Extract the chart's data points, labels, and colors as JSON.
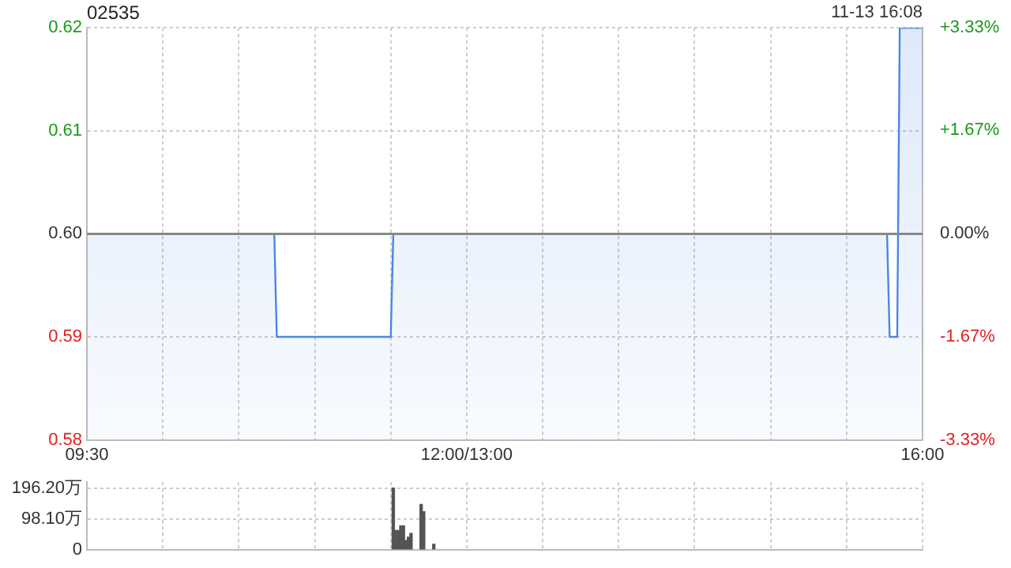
{
  "chart_data": [
    {
      "type": "area",
      "title": "02535",
      "annotations": [
        "11-13 16:08"
      ],
      "categories": [
        "09:30",
        null,
        null,
        null,
        null,
        null,
        null,
        null,
        null,
        null,
        null,
        null,
        null,
        null,
        null,
        null,
        null,
        null,
        null,
        null,
        null,
        null,
        null,
        null,
        null,
        null,
        null,
        null,
        null,
        null,
        null,
        null,
        null,
        null,
        null,
        null,
        null,
        null,
        null,
        null,
        null,
        null,
        null,
        null,
        null,
        null,
        null,
        null,
        null,
        null,
        null,
        null,
        null,
        null,
        null,
        null,
        null,
        null,
        null,
        null,
        null,
        null,
        null,
        null,
        null,
        null,
        null,
        null,
        null,
        null,
        null,
        null,
        null,
        null,
        null,
        null,
        null,
        null,
        null,
        null,
        null,
        null,
        null,
        null,
        null,
        null,
        null,
        null,
        null,
        null,
        null,
        null,
        null,
        null,
        null,
        null,
        null,
        null,
        null,
        null,
        null,
        null,
        null,
        null,
        null,
        null,
        null,
        null,
        null,
        null,
        null,
        null,
        null,
        null,
        null,
        null,
        null,
        null,
        null,
        null,
        null,
        null,
        null,
        null,
        null,
        null,
        null,
        null,
        null,
        null,
        null,
        null,
        null,
        null,
        null,
        null,
        null,
        null,
        null,
        null,
        null,
        null,
        null,
        null,
        null,
        null,
        null,
        null,
        null,
        null,
        "12:00/13:00",
        null,
        null,
        null,
        null,
        null,
        null,
        null,
        null,
        null,
        null,
        null,
        null,
        null,
        null,
        null,
        null,
        null,
        null,
        null,
        null,
        null,
        null,
        null,
        null,
        null,
        null,
        null,
        null,
        null,
        null,
        null,
        null,
        null,
        null,
        null,
        null,
        null,
        null,
        null,
        null,
        null,
        null,
        null,
        null,
        null,
        null,
        null,
        null,
        null,
        null,
        null,
        null,
        null,
        null,
        null,
        null,
        null,
        null,
        null,
        null,
        null,
        null,
        null,
        null,
        null,
        null,
        null,
        null,
        null,
        null,
        null,
        null,
        null,
        null,
        null,
        null,
        null,
        null,
        null,
        null,
        null,
        null,
        null,
        null,
        null,
        null,
        null,
        null,
        null,
        null,
        null,
        null,
        null,
        null,
        null,
        null,
        null,
        null,
        null,
        null,
        null,
        null,
        null,
        null,
        null,
        null,
        null,
        null,
        null,
        null,
        null,
        null,
        null,
        null,
        null,
        null,
        null,
        null,
        null,
        null,
        null,
        null,
        null,
        null,
        null,
        null,
        null,
        null,
        null,
        null,
        null,
        null,
        null,
        null,
        null,
        null,
        null,
        null,
        null,
        null,
        null,
        null,
        null,
        null,
        null,
        null,
        null,
        null,
        null,
        null,
        null,
        null,
        null,
        null,
        null,
        null,
        null,
        null,
        null,
        null,
        null,
        null,
        null,
        null,
        null,
        null,
        null,
        null,
        null,
        null,
        null,
        null,
        null,
        null,
        null,
        null,
        null,
        null,
        null,
        "16:00"
      ],
      "values": [
        0.6,
        0.6,
        0.6,
        0.6,
        0.6,
        0.6,
        0.6,
        0.6,
        0.6,
        0.6,
        0.6,
        0.6,
        0.6,
        0.6,
        0.6,
        0.6,
        0.6,
        0.6,
        0.6,
        0.6,
        0.6,
        0.6,
        0.6,
        0.6,
        0.6,
        0.6,
        0.6,
        0.6,
        0.6,
        0.6,
        0.6,
        0.6,
        0.6,
        0.6,
        0.6,
        0.6,
        0.6,
        0.6,
        0.6,
        0.6,
        0.6,
        0.6,
        0.6,
        0.6,
        0.6,
        0.6,
        0.6,
        0.6,
        0.6,
        0.6,
        0.6,
        0.6,
        0.6,
        0.6,
        0.6,
        0.6,
        0.6,
        0.6,
        0.6,
        0.6,
        0.6,
        0.6,
        0.6,
        0.6,
        0.6,
        0.6,
        0.6,
        0.6,
        0.6,
        0.6,
        0.6,
        0.6,
        0.6,
        0.6,
        0.6,
        0.59,
        0.59,
        0.59,
        0.59,
        0.59,
        0.59,
        0.59,
        0.59,
        0.59,
        0.59,
        0.59,
        0.59,
        0.59,
        0.59,
        0.59,
        0.59,
        0.59,
        0.59,
        0.59,
        0.59,
        0.59,
        0.59,
        0.59,
        0.59,
        0.59,
        0.59,
        0.59,
        0.59,
        0.59,
        0.59,
        0.59,
        0.59,
        0.59,
        0.59,
        0.59,
        0.59,
        0.59,
        0.59,
        0.59,
        0.59,
        0.59,
        0.59,
        0.59,
        0.59,
        0.59,
        0.59,
        0.6,
        0.6,
        0.6,
        0.6,
        0.6,
        0.6,
        0.6,
        0.6,
        0.6,
        0.6,
        0.6,
        0.6,
        0.6,
        0.6,
        0.6,
        0.6,
        0.6,
        0.6,
        0.6,
        0.6,
        0.6,
        0.6,
        0.6,
        0.6,
        0.6,
        0.6,
        0.6,
        0.6,
        0.6,
        0.6,
        0.6,
        0.6,
        0.6,
        0.6,
        0.6,
        0.6,
        0.6,
        0.6,
        0.6,
        0.6,
        0.6,
        0.6,
        0.6,
        0.6,
        0.6,
        0.6,
        0.6,
        0.6,
        0.6,
        0.6,
        0.6,
        0.6,
        0.6,
        0.6,
        0.6,
        0.6,
        0.6,
        0.6,
        0.6,
        0.6,
        0.6,
        0.6,
        0.6,
        0.6,
        0.6,
        0.6,
        0.6,
        0.6,
        0.6,
        0.6,
        0.6,
        0.6,
        0.6,
        0.6,
        0.6,
        0.6,
        0.6,
        0.6,
        0.6,
        0.6,
        0.6,
        0.6,
        0.6,
        0.6,
        0.6,
        0.6,
        0.6,
        0.6,
        0.6,
        0.6,
        0.6,
        0.6,
        0.6,
        0.6,
        0.6,
        0.6,
        0.6,
        0.6,
        0.6,
        0.6,
        0.6,
        0.6,
        0.6,
        0.6,
        0.6,
        0.6,
        0.6,
        0.6,
        0.6,
        0.6,
        0.6,
        0.6,
        0.6,
        0.6,
        0.6,
        0.6,
        0.6,
        0.6,
        0.6,
        0.6,
        0.6,
        0.6,
        0.6,
        0.6,
        0.6,
        0.6,
        0.6,
        0.6,
        0.6,
        0.6,
        0.6,
        0.6,
        0.6,
        0.6,
        0.6,
        0.6,
        0.6,
        0.6,
        0.6,
        0.6,
        0.6,
        0.6,
        0.6,
        0.6,
        0.6,
        0.6,
        0.6,
        0.6,
        0.6,
        0.6,
        0.6,
        0.6,
        0.6,
        0.6,
        0.6,
        0.6,
        0.6,
        0.6,
        0.6,
        0.6,
        0.6,
        0.6,
        0.6,
        0.6,
        0.6,
        0.6,
        0.6,
        0.6,
        0.6,
        0.6,
        0.6,
        0.6,
        0.6,
        0.6,
        0.6,
        0.6,
        0.6,
        0.6,
        0.6,
        0.6,
        0.6,
        0.6,
        0.6,
        0.6,
        0.6,
        0.6,
        0.6,
        0.6,
        0.6,
        0.6,
        0.6,
        0.6,
        0.6,
        0.6,
        0.6,
        0.6,
        0.59,
        0.59,
        0.59,
        0.59,
        0.62,
        0.62,
        0.62,
        0.62,
        0.62,
        0.62,
        0.62,
        0.62,
        0.62,
        0.62
      ],
      "color": "#4a86e8",
      "ylim": [
        0.58,
        0.62
      ],
      "yticks": [
        0.58,
        0.59,
        {
          "value": 0.6,
          "label": "0.60"
        },
        0.61,
        0.62
      ],
      "y2lim": [
        -3.33,
        3.33
      ],
      "y2ticks": [
        {
          "value": -3.33,
          "label": "-3.33%"
        },
        {
          "value": -1.67,
          "label": "-1.67%"
        },
        {
          "value": 0,
          "label": "0.00%"
        },
        {
          "value": 1.67,
          "label": "+1.67%"
        },
        {
          "value": 3.33,
          "label": "+3.33%"
        }
      ],
      "ref_lines": [
        {
          "axis": "y",
          "value": 0.6,
          "color": "#888888"
        }
      ],
      "grid": true
    },
    {
      "type": "bar",
      "categories": [
        null,
        null,
        null,
        null,
        null,
        null,
        null,
        null,
        null,
        null,
        null,
        null,
        null,
        null,
        null,
        null,
        null,
        null,
        null,
        null,
        null,
        null,
        null,
        null,
        null,
        null,
        null,
        null,
        null,
        null,
        null,
        null,
        null,
        null,
        null,
        null,
        null,
        null,
        null,
        null,
        null,
        null,
        null,
        null,
        null,
        null,
        null,
        null,
        null,
        null,
        null,
        null,
        null,
        null,
        null,
        null,
        null,
        null,
        null,
        null,
        null,
        null,
        null,
        null,
        null,
        null,
        null,
        null,
        null,
        null,
        null,
        null,
        null,
        null,
        null,
        null,
        null,
        null,
        null,
        null,
        null,
        null,
        null,
        null,
        null,
        null,
        null,
        null,
        null,
        null,
        null,
        null,
        null,
        null,
        null,
        null,
        null,
        null,
        null,
        null,
        null,
        null,
        null,
        null,
        null,
        null,
        null,
        null,
        null,
        null,
        null,
        null,
        null,
        null,
        null,
        null,
        null,
        null,
        null,
        null,
        null,
        null,
        null,
        null,
        null,
        null,
        null,
        null,
        null,
        null,
        null,
        null,
        null,
        null,
        null,
        null,
        null,
        null,
        null,
        null,
        null,
        null,
        null,
        null,
        null,
        null,
        null,
        null,
        null,
        null,
        null,
        null,
        null,
        null,
        null,
        null,
        null,
        null,
        null,
        null,
        null,
        null,
        null,
        null,
        null,
        null,
        null,
        null,
        null,
        null,
        null,
        null,
        null,
        null,
        null,
        null,
        null,
        null,
        null,
        null,
        null,
        null,
        null,
        null,
        null,
        null,
        null,
        null,
        null,
        null,
        null,
        null,
        null,
        null,
        null,
        null,
        null,
        null,
        null,
        null,
        null,
        null,
        null,
        null,
        null,
        null,
        null,
        null,
        null,
        null,
        null,
        null,
        null,
        null,
        null,
        null,
        null,
        null,
        null,
        null,
        null,
        null,
        null,
        null,
        null,
        null,
        null,
        null,
        null,
        null,
        null,
        null,
        null,
        null,
        null,
        null,
        null,
        null,
        null,
        null,
        null,
        null,
        null,
        null,
        null,
        null,
        null,
        null,
        null,
        null,
        null,
        null,
        null,
        null,
        null,
        null,
        null,
        null,
        null,
        null,
        null,
        null,
        null,
        null,
        null,
        null,
        null,
        null,
        null,
        null,
        null,
        null,
        null,
        null,
        null,
        null,
        null,
        null,
        null,
        null,
        null,
        null,
        null,
        null,
        null,
        null,
        null,
        null,
        null,
        null,
        null,
        null,
        null,
        null,
        null,
        null,
        null,
        null,
        null,
        null,
        null,
        null,
        null,
        null,
        null,
        null,
        null,
        null,
        null,
        null,
        null,
        null,
        null,
        null,
        null,
        null,
        null,
        null,
        null,
        null,
        null,
        null,
        null,
        null,
        null,
        null,
        null,
        null,
        null,
        null,
        null
      ],
      "values": [
        null,
        null,
        null,
        null,
        null,
        null,
        null,
        null,
        null,
        null,
        null,
        null,
        null,
        null,
        null,
        null,
        null,
        null,
        null,
        null,
        null,
        null,
        null,
        null,
        null,
        null,
        null,
        null,
        null,
        null,
        null,
        null,
        null,
        null,
        null,
        null,
        null,
        null,
        null,
        null,
        null,
        null,
        null,
        null,
        null,
        null,
        null,
        null,
        null,
        null,
        null,
        null,
        null,
        null,
        null,
        null,
        null,
        null,
        null,
        null,
        null,
        null,
        null,
        null,
        null,
        null,
        null,
        null,
        null,
        null,
        null,
        null,
        null,
        null,
        null,
        null,
        null,
        null,
        null,
        null,
        null,
        null,
        null,
        null,
        null,
        null,
        null,
        null,
        null,
        null,
        null,
        null,
        null,
        null,
        null,
        null,
        null,
        null,
        null,
        null,
        null,
        null,
        null,
        null,
        null,
        null,
        null,
        null,
        null,
        null,
        null,
        null,
        null,
        null,
        null,
        null,
        null,
        null,
        null,
        null,
        null,
        196,
        61,
        61,
        76,
        76,
        29,
        40,
        52,
        null,
        null,
        null,
        144,
        121,
        null,
        null,
        null,
        17,
        null,
        null,
        null,
        null,
        null,
        null,
        null,
        null,
        null,
        null,
        null,
        null,
        null,
        null,
        null,
        null,
        null,
        null,
        null,
        null,
        null,
        null,
        null,
        null,
        null,
        null,
        null,
        null,
        null,
        null,
        null,
        null,
        null,
        null,
        null,
        null,
        null,
        null,
        null,
        null,
        null,
        null,
        null,
        null,
        null,
        null,
        null,
        null,
        null,
        null,
        null,
        null,
        null,
        null,
        null,
        null,
        null,
        null,
        null,
        null,
        null,
        null,
        null,
        null,
        null,
        null,
        null,
        null,
        null,
        null,
        null,
        null,
        null,
        null,
        null,
        null,
        null,
        null,
        null,
        null,
        null,
        null,
        null,
        null,
        null,
        null,
        null,
        null,
        null,
        null,
        null,
        null,
        null,
        null,
        null,
        null,
        null,
        null,
        null,
        null,
        null,
        null,
        null,
        null,
        null,
        null,
        null,
        null,
        null,
        null,
        null,
        null,
        null,
        null,
        null,
        null,
        null,
        null,
        null,
        null,
        null,
        null,
        null,
        null,
        null,
        null,
        null,
        null,
        null,
        null,
        null,
        null,
        null,
        null,
        null,
        null,
        null,
        null,
        null,
        null,
        null,
        null,
        null,
        null,
        null,
        null,
        null,
        null,
        null,
        null,
        null,
        null,
        null,
        null,
        null,
        null,
        null,
        null,
        null,
        null,
        null,
        null,
        null,
        null,
        null,
        null,
        null,
        null,
        null,
        null,
        null,
        null,
        null,
        null,
        null,
        null,
        null,
        null,
        null,
        null,
        null,
        null,
        null,
        null,
        null,
        null,
        null,
        null,
        null,
        null,
        null,
        null,
        null
      ],
      "color": "#555555",
      "ylim": [
        0,
        215
      ],
      "yticks": [
        0,
        {
          "value": 98.1,
          "label": "98.10万"
        },
        {
          "value": 196.2,
          "label": "196.20万"
        }
      ],
      "tick_labels": "y",
      "grid": true
    }
  ]
}
